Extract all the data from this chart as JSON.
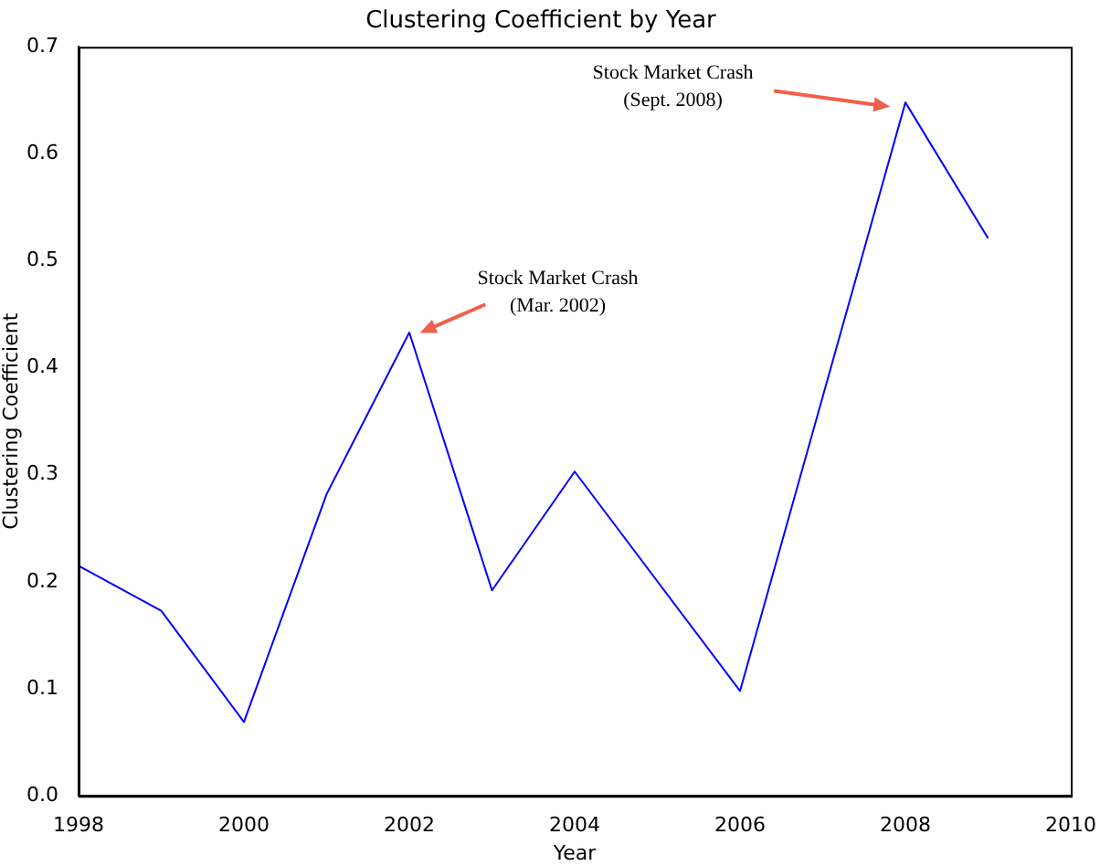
{
  "chart_data": {
    "type": "line",
    "title": "Clustering Coefficient by Year",
    "xlabel": "Year",
    "ylabel": "Clustering Coefficient",
    "x": [
      1998,
      1999,
      2000,
      2001,
      2002,
      2003,
      2004,
      2006,
      2008,
      2009
    ],
    "series": [
      {
        "color": "#0000ff",
        "values": [
          0.215,
          0.173,
          0.069,
          0.282,
          0.433,
          0.192,
          0.303,
          0.098,
          0.648,
          0.521
        ]
      }
    ],
    "xlim": [
      1998,
      2010
    ],
    "xticks": [
      1998,
      2000,
      2002,
      2004,
      2006,
      2008,
      2010
    ],
    "ylim": [
      0,
      0.7
    ],
    "yticks": [
      {
        "value": 0,
        "label": "0.0"
      },
      0.1,
      0.2,
      0.3,
      0.4,
      0.5,
      0.6,
      0.7
    ],
    "marker": "none",
    "line_style": "solid",
    "grid": false,
    "legend": false,
    "annotations": [
      "Stock Market Crash\n(Mar. 2002)",
      "Stock Market Crash\n(Sept. 2008)"
    ]
  }
}
